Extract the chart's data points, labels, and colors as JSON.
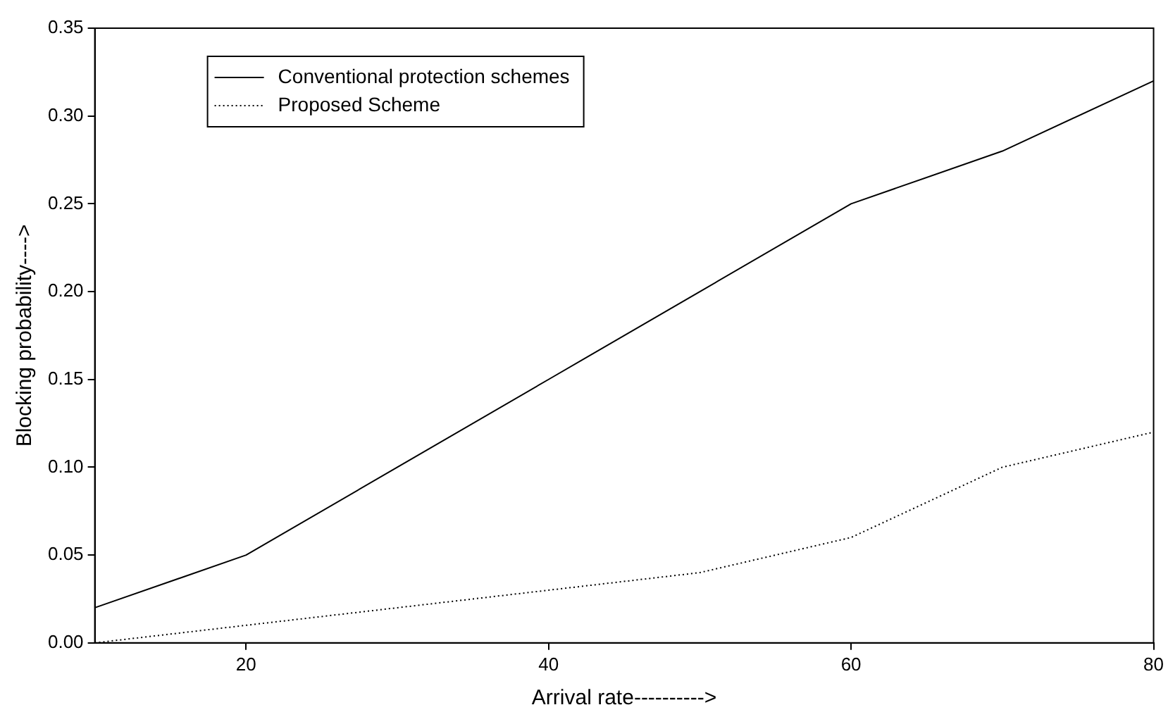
{
  "chart_data": {
    "type": "line",
    "xlabel": "Arrival rate---------->",
    "ylabel": "Blocking probability---->",
    "x": [
      10,
      20,
      30,
      40,
      50,
      60,
      70,
      80
    ],
    "series": [
      {
        "name": "Conventional protection schemes",
        "color": "#000000",
        "line_style": "solid",
        "values": [
          0.02,
          0.05,
          0.1,
          0.15,
          0.2,
          0.25,
          0.28,
          0.32
        ]
      },
      {
        "name": "Proposed Scheme",
        "color": "#000000",
        "line_style": "dotted",
        "values": [
          0.0,
          0.01,
          0.02,
          0.03,
          0.04,
          0.06,
          0.1,
          0.12
        ]
      }
    ],
    "xlim": [
      10,
      80
    ],
    "xticks": [
      20,
      40,
      60,
      80
    ],
    "ylim": [
      0,
      0.35
    ],
    "yticks": [
      {
        "value": 0,
        "label": "0.00"
      },
      {
        "value": 0.05,
        "label": "0.05"
      },
      {
        "value": 0.1,
        "label": "0.10"
      },
      {
        "value": 0.15,
        "label": "0.15"
      },
      {
        "value": 0.2,
        "label": "0.20"
      },
      {
        "value": 0.25,
        "label": "0.25"
      },
      {
        "value": 0.3,
        "label": "0.30"
      },
      {
        "value": 0.35,
        "label": "0.35"
      }
    ],
    "grid": false,
    "legend": "top left",
    "marker": "none"
  }
}
